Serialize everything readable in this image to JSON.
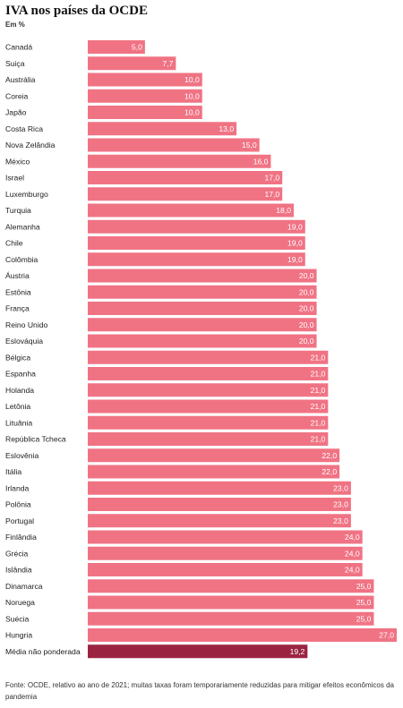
{
  "title": "IVA nos países da OCDE",
  "subtitle": "Em %",
  "source": "Fonte: OCDE, relativo ao ano de 2021; muitas taxas foram temporariamente reduzidas para mitigar efeitos econômicos da pandemia",
  "colors": {
    "bar": "#f07384",
    "highlight": "#9b2342"
  },
  "chart_data": {
    "type": "bar",
    "orientation": "horizontal",
    "categories": [
      "Canadá",
      "Suiça",
      "Austrália",
      "Coreia",
      "Japão",
      "Costa Rica",
      "Nova Zelândia",
      "México",
      "Israel",
      "Luxemburgo",
      "Turquia",
      "Alemanha",
      "Chile",
      "Colômbia",
      "Áustria",
      "Estônia",
      "França",
      "Reino Unido",
      "Eslováquia",
      "Bélgica",
      "Espanha",
      "Holanda",
      "Letônia",
      "Lituânia",
      "República Tcheca",
      "Eslovênia",
      "Itália",
      "Irlanda",
      "Polônia",
      "Portugal",
      "Finlândia",
      "Grécia",
      "Islândia",
      "Dinamarca",
      "Noruega",
      "Suécia",
      "Hungria",
      "Média não ponderada"
    ],
    "values": [
      5.0,
      7.7,
      10.0,
      10.0,
      10.0,
      13.0,
      15.0,
      16.0,
      17.0,
      17.0,
      18.0,
      19.0,
      19.0,
      19.0,
      20.0,
      20.0,
      20.0,
      20.0,
      20.0,
      21.0,
      21.0,
      21.0,
      21.0,
      21.0,
      21.0,
      22.0,
      22.0,
      23.0,
      23.0,
      23.0,
      24.0,
      24.0,
      24.0,
      25.0,
      25.0,
      25.0,
      27.0,
      19.2
    ],
    "value_labels": [
      "5,0",
      "7,7",
      "10,0",
      "10,0",
      "10,0",
      "13,0",
      "15,0",
      "16,0",
      "17,0",
      "17,0",
      "18,0",
      "19,0",
      "19,0",
      "19,0",
      "20,0",
      "20,0",
      "20,0",
      "20,0",
      "20,0",
      "21,0",
      "21,0",
      "21,0",
      "21,0",
      "21,0",
      "21,0",
      "22,0",
      "22,0",
      "23,0",
      "23,0",
      "23,0",
      "24,0",
      "24,0",
      "24,0",
      "25,0",
      "25,0",
      "25,0",
      "27,0",
      "19,2"
    ],
    "highlight_index": 37,
    "xlim": [
      0,
      27
    ],
    "grid": false,
    "legend": "none"
  }
}
